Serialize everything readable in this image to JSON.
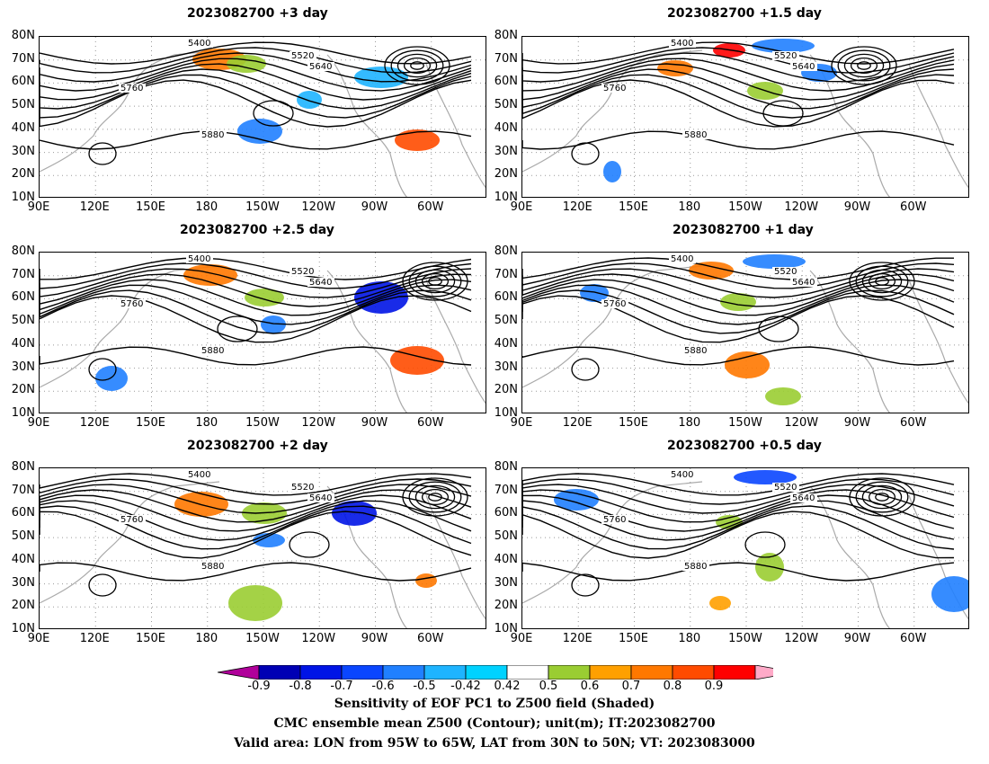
{
  "panels": [
    {
      "title": "2023082700 +3 day"
    },
    {
      "title": "2023082700 +1.5 day"
    },
    {
      "title": "2023082700 +2.5 day"
    },
    {
      "title": "2023082700 +1 day"
    },
    {
      "title": "2023082700 +2 day"
    },
    {
      "title": "2023082700 +0.5 day"
    }
  ],
  "axes": {
    "lat_labels": [
      "80N",
      "70N",
      "60N",
      "50N",
      "40N",
      "30N",
      "20N",
      "10N"
    ],
    "lon_labels": [
      "90E",
      "120E",
      "150E",
      "180",
      "150W",
      "120W",
      "90W",
      "60W"
    ]
  },
  "contour_labels": [
    "5400",
    "5520",
    "5640",
    "5760",
    "5880"
  ],
  "colorbar": {
    "labels": [
      "-0.9",
      "-0.8",
      "-0.7",
      "-0.6",
      "-0.5",
      "-0.42",
      "0.42",
      "0.5",
      "0.6",
      "0.7",
      "0.8",
      "0.9"
    ],
    "colors": [
      "#b0009a",
      "#0000b4",
      "#0014e6",
      "#0a46ff",
      "#2080ff",
      "#1eb4ff",
      "#00d2ff",
      "#ffffff",
      "#9acd32",
      "#ffa000",
      "#ff7800",
      "#ff4b00",
      "#ff0000",
      "#ffaac8"
    ]
  },
  "captions": {
    "line1": "Sensitivity of EOF PC1 to Z500 field (Shaded)",
    "line2": "CMC ensemble mean Z500 (Contour); unit(m); IT:2023082700",
    "line3": "Valid area: LON from 95W to 65W, LAT from 30N to 50N; VT: 2023083000"
  }
}
